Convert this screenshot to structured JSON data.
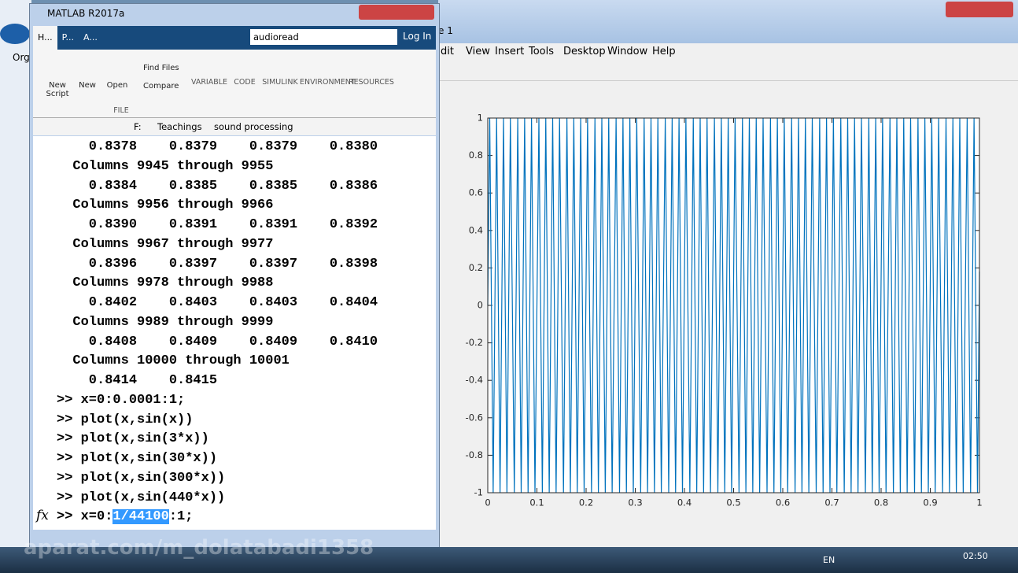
{
  "desktop": {
    "left_label": "Org"
  },
  "matlab_window": {
    "title": "MATLAB R2017a",
    "tabs": [
      "H...",
      "P...",
      "A..."
    ],
    "search": "audioread",
    "login": "Log In",
    "toolstrip": {
      "buttons": [
        "New Script",
        "New",
        "Open",
        "Find Files",
        "Compare"
      ],
      "section": "FILE",
      "groups": [
        "VARIABLE",
        "CODE",
        "SIMULINK",
        "ENVIRONMENT",
        "RESOURCES"
      ]
    },
    "path": [
      "F:",
      "Teachings",
      "sound processing"
    ],
    "command_window": {
      "lines": [
        "    0.8378    0.8379    0.8379    0.8380",
        "  Columns 9945 through 9955",
        "    0.8384    0.8385    0.8385    0.8386",
        "  Columns 9956 through 9966",
        "    0.8390    0.8391    0.8391    0.8392",
        "  Columns 9967 through 9977",
        "    0.8396    0.8397    0.8397    0.8398",
        "  Columns 9978 through 9988",
        "    0.8402    0.8403    0.8403    0.8404",
        "  Columns 9989 through 9999",
        "    0.8408    0.8409    0.8409    0.8410",
        "  Columns 10000 through 10001",
        "    0.8414    0.8415",
        ">> x=0:0.0001:1;",
        ">> plot(x,sin(x))",
        ">> plot(x,sin(3*x))",
        ">> plot(x,sin(30*x))",
        ">> plot(x,sin(300*x))",
        ">> plot(x,sin(440*x))"
      ],
      "input": {
        "before": ">> x=0:",
        "selected": "1/44100",
        "after": ":1;"
      },
      "fx": "fx"
    }
  },
  "figure_window": {
    "title": "e 1",
    "menu": [
      "dit",
      "View",
      "Insert",
      "Tools",
      "Desktop",
      "Window",
      "Help"
    ]
  },
  "chart_data": {
    "type": "line",
    "xlim": [
      0,
      1
    ],
    "ylim": [
      -1,
      1
    ],
    "xticks": [
      0,
      0.1,
      0.2,
      0.3,
      0.4,
      0.5,
      0.6,
      0.7,
      0.8,
      0.9,
      1
    ],
    "yticks": [
      -1,
      -0.8,
      -0.6,
      -0.4,
      -0.2,
      0,
      0.2,
      0.4,
      0.6,
      0.8,
      1
    ],
    "x": [
      0,
      0.004,
      0.011,
      0.018,
      0.025,
      0.032,
      0.039,
      0.046,
      0.054,
      0.061,
      0.068,
      0.075,
      0.082,
      0.089,
      0.096,
      0.104,
      0.111,
      0.118,
      0.125,
      0.132,
      0.139,
      0.146,
      0.154,
      0.161,
      0.168,
      0.175,
      0.182,
      0.189,
      0.196,
      0.203,
      0.211,
      0.218,
      0.225,
      0.232,
      0.239,
      0.246,
      0.253,
      0.261,
      0.268,
      0.275,
      0.282,
      0.289,
      0.296,
      0.303,
      0.311,
      0.318,
      0.325,
      0.332,
      0.339,
      0.346,
      0.353,
      0.361,
      0.368,
      0.375,
      0.382,
      0.389,
      0.396,
      0.403,
      0.411,
      0.418,
      0.425,
      0.432,
      0.439,
      0.446,
      0.453,
      0.461,
      0.468,
      0.475,
      0.482,
      0.489,
      0.496,
      0.503,
      0.511,
      0.518,
      0.525,
      0.532,
      0.539,
      0.546,
      0.553,
      0.56,
      0.568,
      0.575,
      0.582,
      0.589,
      0.596,
      0.603,
      0.61,
      0.618,
      0.625,
      0.632,
      0.639,
      0.646,
      0.653,
      0.66,
      0.668,
      0.675,
      0.682,
      0.689,
      0.696,
      0.703,
      0.71,
      0.718,
      0.725,
      0.732,
      0.739,
      0.746,
      0.753,
      0.76,
      0.768,
      0.775,
      0.782,
      0.789,
      0.796,
      0.803,
      0.81,
      0.818,
      0.825,
      0.832,
      0.839,
      0.846,
      0.853,
      0.86,
      0.868,
      0.875,
      0.882,
      0.889,
      0.896,
      0.903,
      0.91,
      0.917,
      0.925,
      0.932,
      0.939,
      0.946,
      0.953,
      0.96,
      0.967,
      0.975,
      0.982,
      0.989,
      0.996,
      1
    ],
    "series": [
      {
        "color": "#0072bd",
        "values": [
          0,
          1,
          -1,
          1,
          -1,
          1,
          -1,
          1,
          -1,
          1,
          -1,
          1,
          -1,
          1,
          -1,
          1,
          -1,
          1,
          -1,
          1,
          -1,
          1,
          -1,
          1,
          -1,
          1,
          -1,
          1,
          -1,
          1,
          -1,
          1,
          -1,
          1,
          -1,
          1,
          -1,
          1,
          -1,
          1,
          -1,
          1,
          -1,
          1,
          -1,
          1,
          -1,
          1,
          -1,
          1,
          -1,
          1,
          -1,
          1,
          -1,
          1,
          -1,
          1,
          -1,
          1,
          -1,
          1,
          -1,
          1,
          -1,
          1,
          -1,
          1,
          -1,
          1,
          -1,
          1,
          -1,
          1,
          -1,
          1,
          -1,
          1,
          -1,
          1,
          -1,
          1,
          -1,
          1,
          -1,
          1,
          -1,
          1,
          -1,
          1,
          -1,
          1,
          -1,
          1,
          -1,
          1,
          -1,
          1,
          -1,
          1,
          -1,
          1,
          -1,
          1,
          -1,
          1,
          -1,
          1,
          -1,
          1,
          -1,
          1,
          -1,
          1,
          -1,
          1,
          -1,
          1,
          -1,
          1,
          -1,
          1,
          -1,
          1,
          -1,
          1,
          -1,
          1,
          -1,
          1,
          -1,
          1,
          -1,
          1,
          -1,
          1,
          -1,
          1,
          -1,
          1,
          -1,
          0.18
        ]
      }
    ]
  },
  "taskbar": {
    "language": "EN",
    "clock": "02:50",
    "watermark": "aparat.com/m_dolatabadi1358"
  }
}
